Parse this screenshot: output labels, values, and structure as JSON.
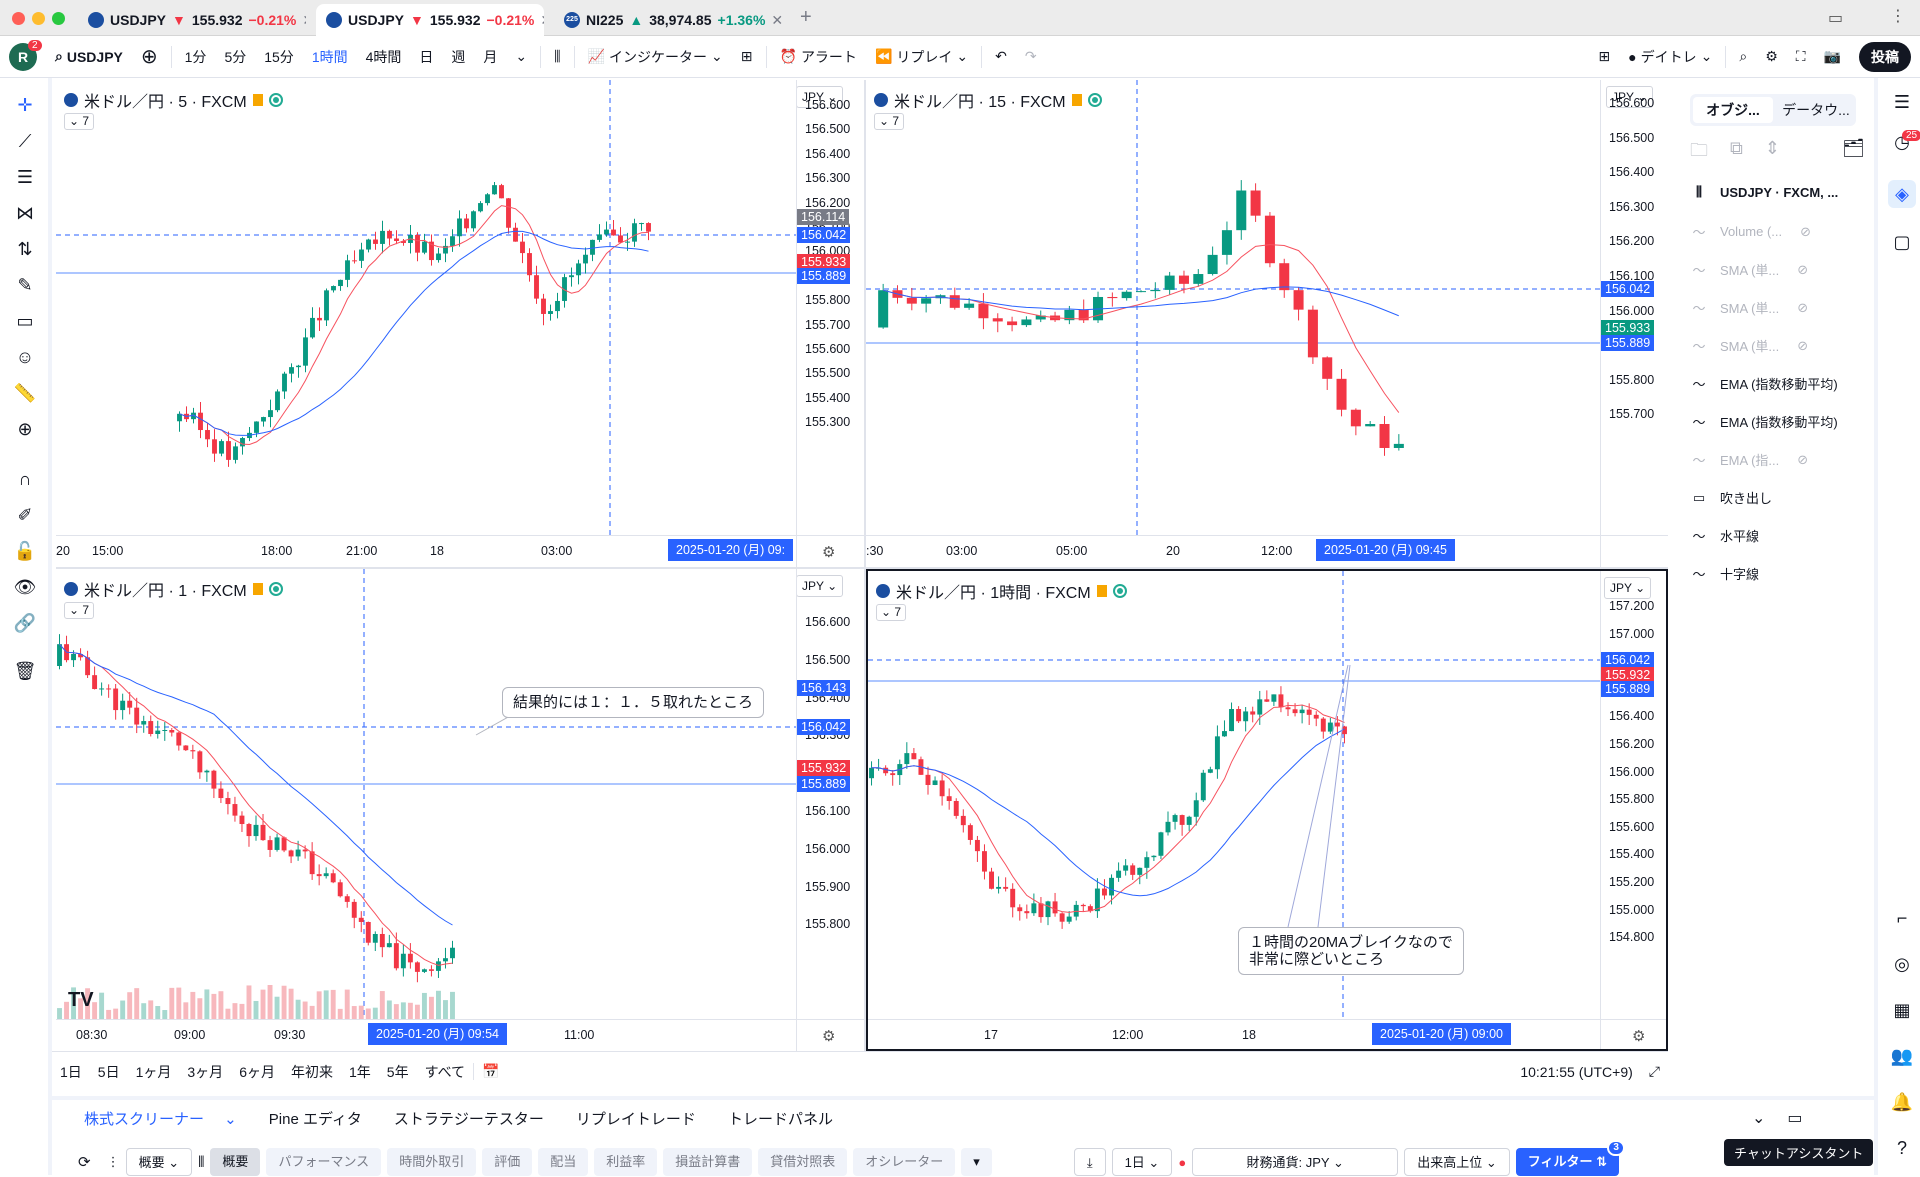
{
  "tabs": [
    {
      "symbol": "USDJPY",
      "arrow": "▼",
      "price": "155.932",
      "change": "−0.21%"
    },
    {
      "symbol": "USDJPY",
      "arrow": "▼",
      "price": "155.932",
      "change": "−0.21%"
    },
    {
      "symbol": "NI225",
      "arrow": "▲",
      "price": "38,974.85",
      "change": "+1.36%",
      "badge": "225"
    }
  ],
  "toolbar": {
    "avatar": "R",
    "avatar_badge": "2",
    "symbol": "USDJPY",
    "intervals": [
      "1分",
      "5分",
      "15分",
      "1時間",
      "4時間",
      "日",
      "週",
      "月"
    ],
    "active_interval": "1時間",
    "indicators": "インジケーター",
    "alert": "アラート",
    "replay": "リプレイ",
    "layout": "デイトレ",
    "publish": "投稿"
  },
  "panes": [
    {
      "title": "米ドル／円 · 5 · FXCM",
      "ind_count": "7",
      "currency": "JPY",
      "yticks": [
        "156.600",
        "156.500",
        "156.400",
        "156.300",
        "156.200",
        "156.100",
        "156.000",
        "155.900",
        "155.800",
        "155.700",
        "155.600",
        "155.500",
        "155.400",
        "155.300"
      ],
      "tags": [
        "156.114",
        "156.042",
        "155.933",
        "155.889"
      ],
      "xticks": [
        "15:00",
        "18:00",
        "21:00",
        "18",
        "03:00",
        "20"
      ],
      "crosshair_label": "2025-01-20 (月)  09:"
    },
    {
      "title": "米ドル／円 · 15 · FXCM",
      "ind_count": "7",
      "currency": "JPY",
      "yticks": [
        "156.600",
        "156.500",
        "156.400",
        "156.300",
        "156.200",
        "156.100",
        "156.000",
        "155.900",
        "155.800",
        "155.700"
      ],
      "tags": [
        "156.042",
        "155.933",
        "155.889"
      ],
      "xticks": [
        ":30",
        "03:00",
        "05:00",
        "20",
        "12:00"
      ],
      "crosshair_label": "2025-01-20 (月)   09:45"
    },
    {
      "title": "米ドル／円 · 1 · FXCM",
      "ind_count": "7",
      "currency": "JPY",
      "yticks": [
        "156.600",
        "156.500",
        "156.400",
        "156.300",
        "156.200",
        "156.100",
        "156.000",
        "155.900",
        "155.800"
      ],
      "tags": [
        "156.143",
        "156.042",
        "155.932",
        "155.889"
      ],
      "xticks": [
        "08:30",
        "09:00",
        "09:30",
        "10:30",
        "11:00"
      ],
      "crosshair_label": "2025-01-20 (月)   09:54",
      "callout": "結果的には１：１．５取れたところ"
    },
    {
      "title": "米ドル／円 · 1時間 · FXCM",
      "ind_count": "7",
      "currency": "JPY",
      "yticks": [
        "157.200",
        "157.000",
        "156.800",
        "156.600",
        "156.400",
        "156.200",
        "156.000",
        "155.800",
        "155.600",
        "155.400",
        "155.200",
        "155.000",
        "154.800"
      ],
      "tags": [
        "156.042",
        "155.932",
        "155.889"
      ],
      "xticks": [
        "17",
        "12:00",
        "18",
        "18:00"
      ],
      "crosshair_label": "2025-01-20 (月)   09:00",
      "callout_line1": "１時間の20MAブレイクなので",
      "callout_line2": "非常に際どいところ"
    }
  ],
  "colors": {
    "up": "#089981",
    "down": "#f23645",
    "blue": "#2962ff",
    "ma_red": "#f7525f",
    "ma_blue": "#2962ff"
  },
  "object_tree": {
    "tab1": "オブジ...",
    "tab2": "データウ...",
    "items": [
      {
        "label": "USDJPY · FXCM, ...",
        "bold": true
      },
      {
        "label": "Volume (...",
        "muted": true
      },
      {
        "label": "SMA (単...",
        "muted": true
      },
      {
        "label": "SMA (単...",
        "muted": true
      },
      {
        "label": "SMA (単...",
        "muted": true
      },
      {
        "label": "EMA (指数移動平均)"
      },
      {
        "label": "EMA (指数移動平均)"
      },
      {
        "label": "EMA (指...",
        "muted": true
      },
      {
        "label": "吹き出し"
      },
      {
        "label": "水平線"
      },
      {
        "label": "十字線"
      }
    ]
  },
  "right_badge": "25",
  "range_bar": {
    "ranges": [
      "1日",
      "5日",
      "1ヶ月",
      "3ヶ月",
      "6ヶ月",
      "年初来",
      "1年",
      "5年",
      "すべて"
    ],
    "clock": "10:21:55 (UTC+9)"
  },
  "bottom": {
    "tabs": [
      "株式スクリーナー",
      "Pine エディタ",
      "ストラテジーテスター",
      "リプレイトレード",
      "トレードパネル"
    ],
    "view": "概要",
    "chips": [
      "概要",
      "パフォーマンス",
      "時間外取引",
      "評価",
      "配当",
      "利益率",
      "損益計算書",
      "貸借対照表",
      "オシレーター"
    ],
    "interval": "1日",
    "currency": "財務通貨: JPY",
    "sort": "出来高上位",
    "filter": "フィルター",
    "filter_badge": "3"
  },
  "tooltip": "チャットアシスタント"
}
